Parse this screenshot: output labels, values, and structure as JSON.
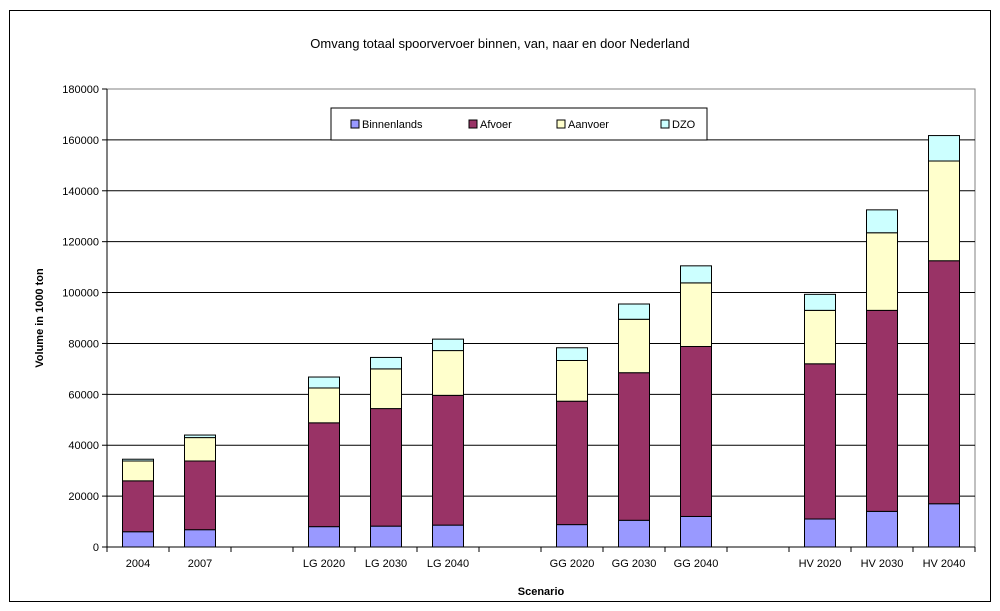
{
  "chart_data": {
    "type": "bar",
    "stacked": true,
    "title": "Omvang totaal spoorvervoer binnen, van, naar en door Nederland",
    "xlabel": "Scenario",
    "ylabel": "Volume in 1000 ton",
    "ylim": [
      0,
      180000
    ],
    "yticks": [
      0,
      20000,
      40000,
      60000,
      80000,
      100000,
      120000,
      140000,
      160000,
      180000
    ],
    "grid": true,
    "legend_position": "top-center",
    "categories": [
      "2004",
      "2007",
      "",
      "LG 2020",
      "LG 2030",
      "LG 2040",
      "",
      "GG 2020",
      "GG 2030",
      "GG 2040",
      "",
      "HV 2020",
      "HV 2030",
      "HV 2040"
    ],
    "series": [
      {
        "name": "Binnenlands",
        "color": "#9999ff",
        "values": [
          6000,
          6800,
          null,
          8000,
          8200,
          8600,
          null,
          8800,
          10500,
          12000,
          null,
          11000,
          14000,
          17000
        ]
      },
      {
        "name": "Afvoer",
        "color": "#993366",
        "values": [
          20000,
          27000,
          null,
          40800,
          46200,
          51000,
          null,
          48500,
          58000,
          66800,
          null,
          61000,
          79000,
          95500
        ]
      },
      {
        "name": "Aanvoer",
        "color": "#ffffcc",
        "values": [
          7800,
          9200,
          null,
          13700,
          15600,
          17600,
          null,
          16000,
          21000,
          25000,
          null,
          21000,
          30500,
          39200
        ]
      },
      {
        "name": "DZO",
        "color": "#ccffff",
        "values": [
          700,
          1000,
          null,
          4300,
          4500,
          4500,
          null,
          5000,
          6000,
          6700,
          null,
          6300,
          9000,
          10000
        ]
      }
    ]
  }
}
